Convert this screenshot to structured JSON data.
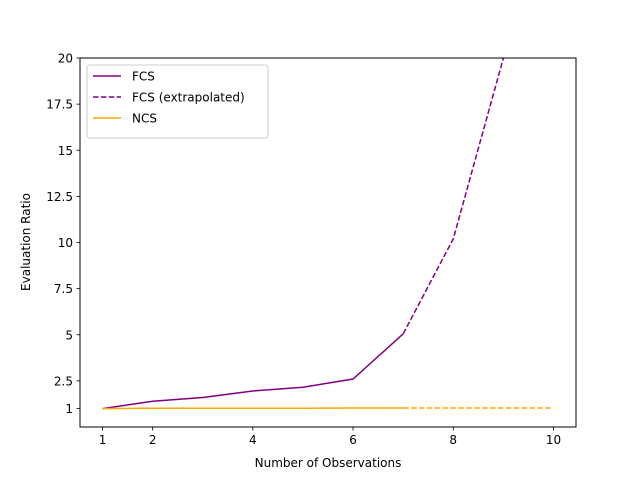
{
  "chart_data": {
    "type": "line",
    "title": "",
    "xlabel": "Number of Observations",
    "ylabel": "Evaluation Ratio",
    "xlim": [
      0.55,
      10.45
    ],
    "ylim": [
      0.0,
      20
    ],
    "xticks": [
      1,
      2,
      4,
      6,
      8,
      10
    ],
    "yticks": [
      1,
      2.5,
      5,
      7.5,
      10,
      12.5,
      15,
      17.5,
      20
    ],
    "ytick_labels": [
      "1",
      "2.5",
      "5",
      "7.5",
      "10",
      "12.5",
      "15",
      "17.5",
      "20"
    ],
    "grid": false,
    "legend_position": "top-left",
    "series": [
      {
        "name": "FCS",
        "color": "#800080",
        "style": "solid",
        "x": [
          1,
          2,
          3,
          4,
          5,
          6,
          7
        ],
        "y": [
          1.0,
          1.4,
          1.6,
          1.95,
          2.15,
          2.6,
          5.05
        ]
      },
      {
        "name": "FCS (extrapolated)",
        "color": "#800080",
        "style": "dashed",
        "x": [
          7,
          8,
          9
        ],
        "y": [
          5.05,
          10.2,
          20.0
        ]
      },
      {
        "name": "NCS",
        "color": "#FFA500",
        "style": "solid",
        "x": [
          1,
          2,
          3,
          4,
          5,
          6,
          7
        ],
        "y": [
          1.0,
          1.02,
          1.02,
          1.02,
          1.02,
          1.03,
          1.03
        ]
      },
      {
        "name": "",
        "color": "#FFA500",
        "style": "dashed",
        "x": [
          7,
          8,
          9,
          10
        ],
        "y": [
          1.03,
          1.03,
          1.03,
          1.03
        ]
      }
    ]
  }
}
